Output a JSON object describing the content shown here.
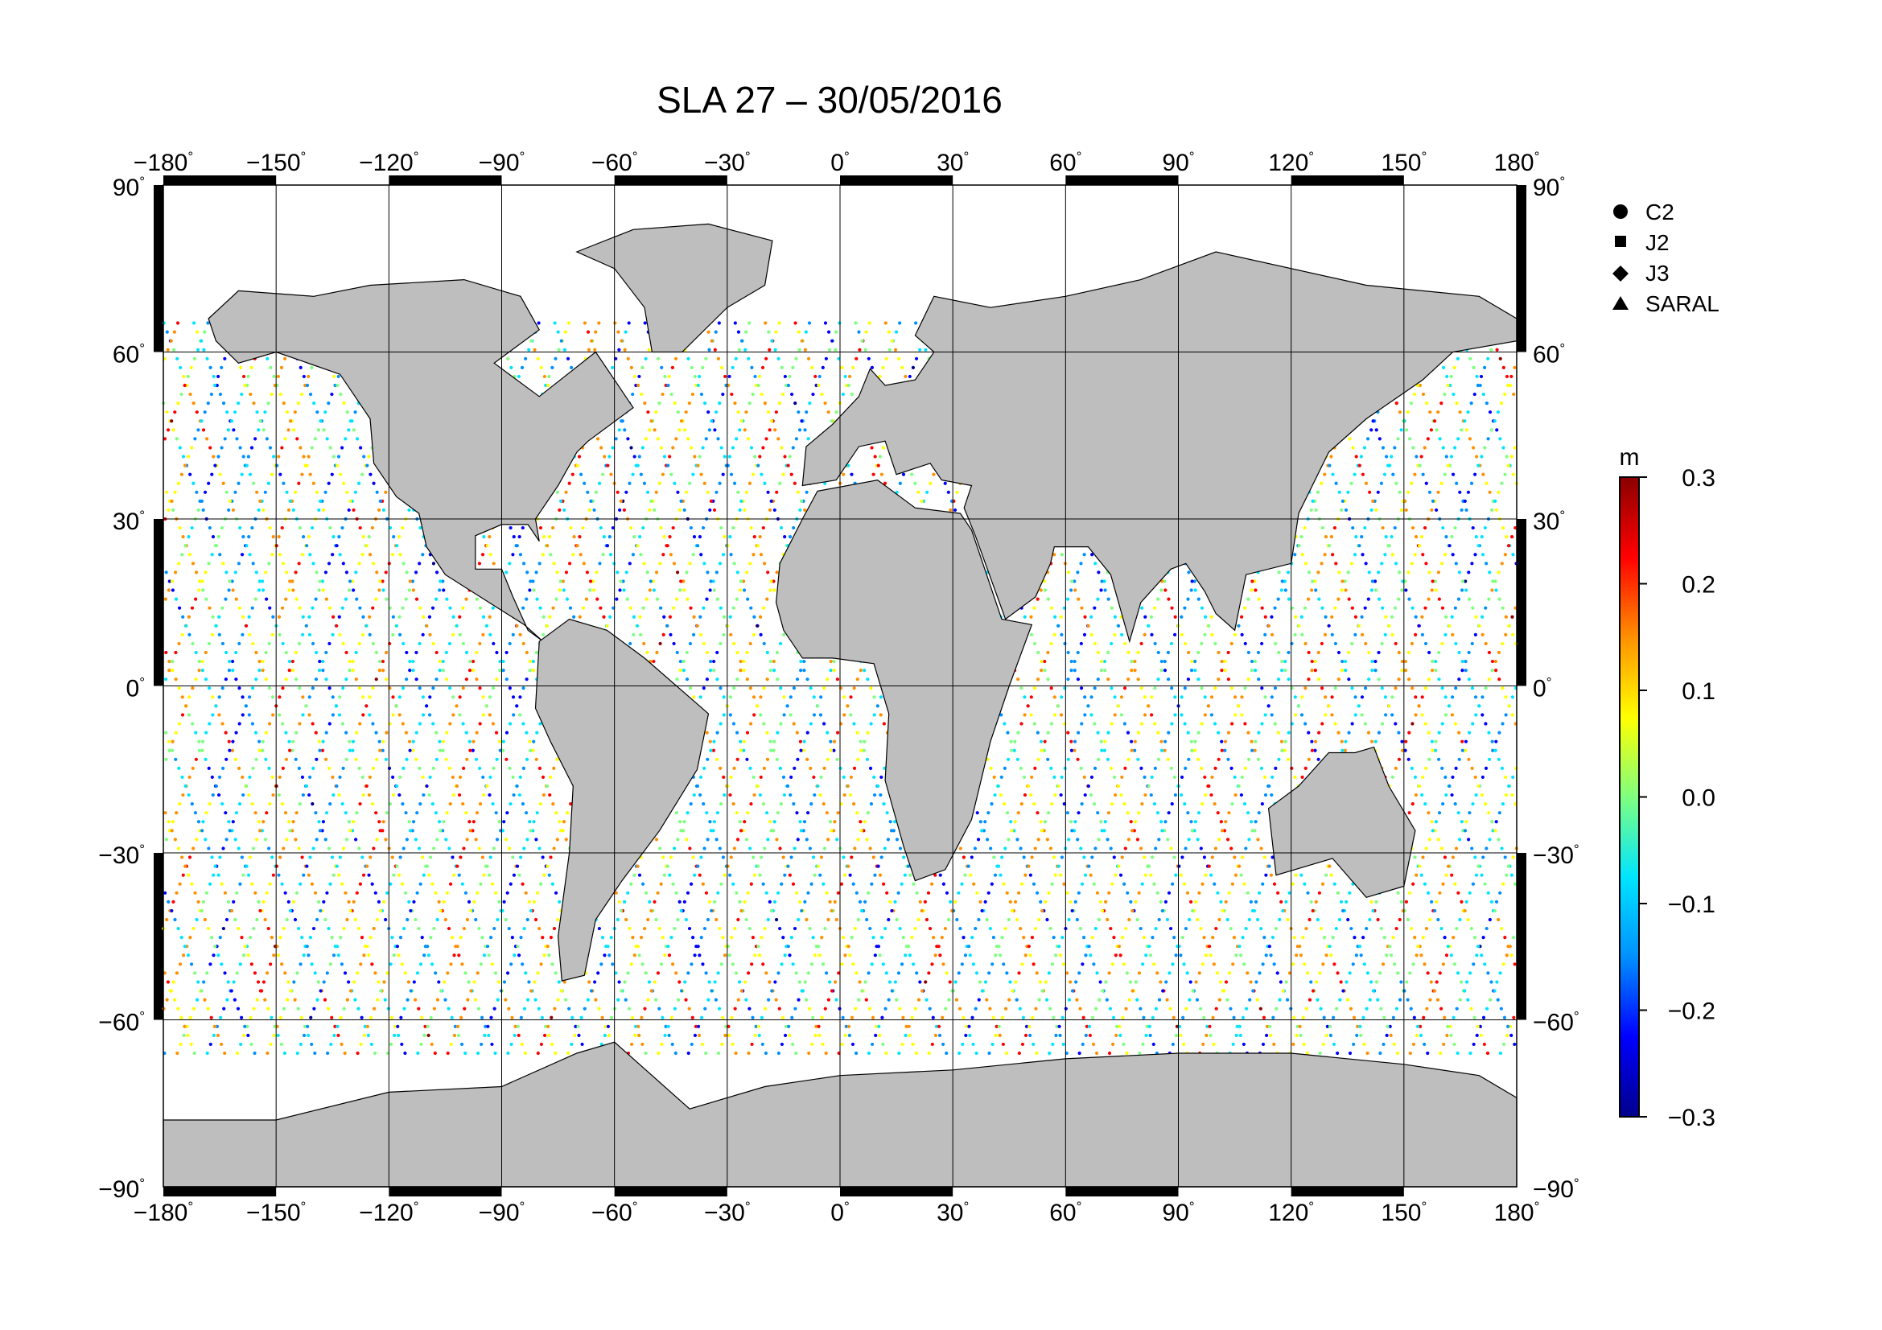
{
  "title": "SLA 27 – 30/05/2016",
  "map": {
    "projection": "equirectangular",
    "lon_range": [
      -180,
      180
    ],
    "lat_range": [
      -90,
      90
    ],
    "grid": true,
    "land_color": "#bebebe",
    "ocean_color": "#ffffff",
    "lon_ticks": [
      {
        "value": -180,
        "label": "−180"
      },
      {
        "value": -150,
        "label": "−150"
      },
      {
        "value": -120,
        "label": "−120"
      },
      {
        "value": -90,
        "label": "−90"
      },
      {
        "value": -60,
        "label": "−60"
      },
      {
        "value": -30,
        "label": "−30"
      },
      {
        "value": 0,
        "label": "0"
      },
      {
        "value": 30,
        "label": "30"
      },
      {
        "value": 60,
        "label": "60"
      },
      {
        "value": 90,
        "label": "90"
      },
      {
        "value": 120,
        "label": "120"
      },
      {
        "value": 150,
        "label": "150"
      },
      {
        "value": 180,
        "label": "180"
      }
    ],
    "lat_ticks": [
      {
        "value": 90,
        "label": "90"
      },
      {
        "value": 60,
        "label": "60"
      },
      {
        "value": 30,
        "label": "30"
      },
      {
        "value": 0,
        "label": "0"
      },
      {
        "value": -30,
        "label": "−30"
      },
      {
        "value": -60,
        "label": "−60"
      },
      {
        "value": -90,
        "label": "−90"
      }
    ],
    "degree_symbol": "°"
  },
  "legend": {
    "placement": "top-right",
    "items": [
      {
        "label": "C2",
        "symbol": "circle"
      },
      {
        "label": "J2",
        "symbol": "square"
      },
      {
        "label": "J3",
        "symbol": "diamond"
      },
      {
        "label": "SARAL",
        "symbol": "triangle"
      }
    ]
  },
  "colorbar": {
    "unit": "m",
    "min": -0.3,
    "max": 0.3,
    "ticks": [
      "0.3",
      "0.2",
      "0.1",
      "0.0",
      "−0.1",
      "−0.2",
      "−0.3"
    ],
    "colormap": "jet",
    "colors": [
      "#00008b",
      "#0000ff",
      "#0090ff",
      "#00e5ff",
      "#7fff7f",
      "#ffff00",
      "#ff9000",
      "#ff0000",
      "#8b0000"
    ]
  },
  "chart_data": {
    "type": "scatter",
    "description_of_marks": "along-track sea level anomaly tracks",
    "x_range": [
      -180,
      180
    ],
    "y_range": [
      -66,
      66
    ],
    "value_range": [
      -0.3,
      0.3
    ]
  }
}
